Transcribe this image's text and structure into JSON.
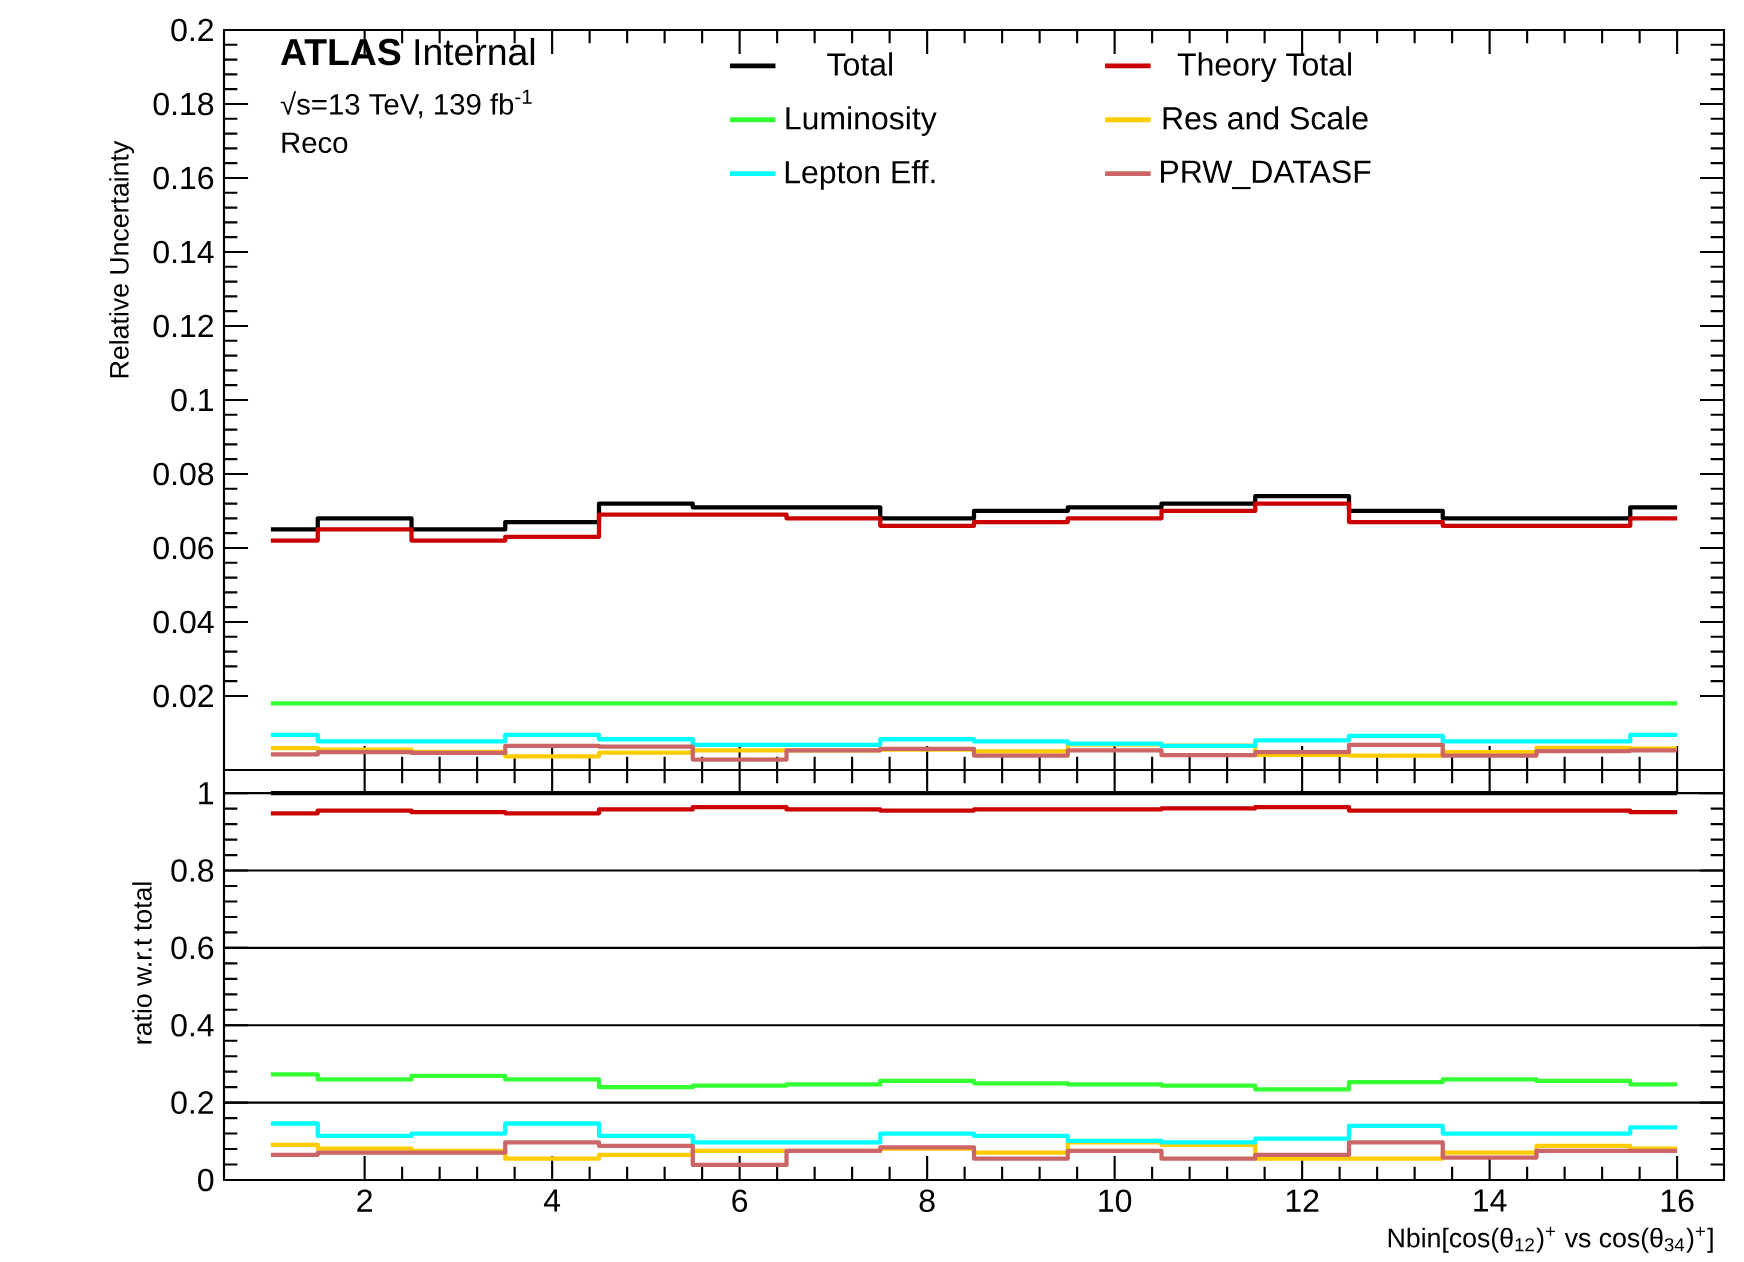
{
  "chart_data": [
    {
      "type": "step",
      "ylabel": "Relative Uncertainty",
      "xlim": [
        0.5,
        16.5
      ],
      "xticks": [
        2,
        4,
        6,
        8,
        10,
        12,
        14,
        16
      ],
      "ylim": [
        0,
        0.2
      ],
      "yticks": [
        0.02,
        0.04,
        0.06,
        0.08,
        0.1,
        0.12,
        0.14,
        0.16,
        0.18,
        0.2
      ],
      "tick_labels": "y",
      "legend": "top right",
      "annotations": [
        "**ATLAS** Internal",
        "√s=13 TeV, 139 fb$^{-1}$",
        "Reco"
      ],
      "x": [
        1,
        2,
        3,
        4,
        5,
        6,
        7,
        8,
        9,
        10,
        11,
        12,
        13,
        14,
        15,
        16
      ],
      "series": [
        {
          "name": "Total",
          "color": "#000000",
          "values": [
            0.065,
            0.068,
            0.065,
            0.067,
            0.072,
            0.071,
            0.071,
            0.068,
            0.07,
            0.071,
            0.072,
            0.074,
            0.07,
            0.068,
            0.068,
            0.071
          ]
        },
        {
          "name": "Theory Total",
          "color": "#cc0000",
          "values": [
            0.062,
            0.065,
            0.062,
            0.063,
            0.069,
            0.069,
            0.068,
            0.066,
            0.067,
            0.068,
            0.07,
            0.072,
            0.067,
            0.066,
            0.066,
            0.068
          ]
        },
        {
          "name": "Luminosity",
          "color": "#33ff33",
          "values": [
            0.018,
            0.018,
            0.018,
            0.018,
            0.018,
            0.018,
            0.018,
            0.018,
            0.018,
            0.018,
            0.018,
            0.018,
            0.018,
            0.018,
            0.018,
            0.018
          ]
        },
        {
          "name": "Res and Scale",
          "color": "#ffcc00",
          "values": [
            0.0059,
            0.0055,
            0.0049,
            0.0037,
            0.0047,
            0.0053,
            0.0053,
            0.0055,
            0.005,
            0.0069,
            0.0066,
            0.0041,
            0.0039,
            0.0048,
            0.006,
            0.0058
          ]
        },
        {
          "name": "Lepton Eff.",
          "color": "#00ffff",
          "values": [
            0.0095,
            0.0077,
            0.0077,
            0.0095,
            0.0083,
            0.0068,
            0.0068,
            0.0083,
            0.0077,
            0.0071,
            0.0065,
            0.008,
            0.0092,
            0.0077,
            0.0077,
            0.0095
          ]
        },
        {
          "name": "PRW_DATASF",
          "color": "#cc6666",
          "values": [
            0.0042,
            0.0048,
            0.0046,
            0.0065,
            0.0063,
            0.0028,
            0.0053,
            0.0057,
            0.0039,
            0.0053,
            0.004,
            0.0048,
            0.0068,
            0.0039,
            0.0051,
            0.0053
          ]
        }
      ]
    },
    {
      "type": "step",
      "ylabel": "ratio w.r.t total",
      "xlabel": "Nbin[cos(θ$_{12}$)$^{+}$ vs cos(θ$_{34}$)$^{+}$]",
      "xlim": [
        0.5,
        16.5
      ],
      "xticks": [
        2,
        4,
        6,
        8,
        10,
        12,
        14,
        16
      ],
      "ylim": [
        0,
        1.06
      ],
      "yticks": [
        0,
        0.2,
        0.4,
        0.6,
        0.8,
        1
      ],
      "grid": "y",
      "x": [
        1,
        2,
        3,
        4,
        5,
        6,
        7,
        8,
        9,
        10,
        11,
        12,
        13,
        14,
        15,
        16
      ],
      "series": [
        {
          "color": "#000000",
          "values": [
            1,
            1,
            1,
            1,
            1,
            1,
            1,
            1,
            1,
            1,
            1,
            1,
            1,
            1,
            1,
            1
          ]
        },
        {
          "color": "#cc0000",
          "values": [
            0.948,
            0.955,
            0.951,
            0.948,
            0.958,
            0.964,
            0.958,
            0.955,
            0.958,
            0.958,
            0.961,
            0.964,
            0.955,
            0.955,
            0.955,
            0.951
          ]
        },
        {
          "color": "#33ff33",
          "values": [
            0.273,
            0.26,
            0.269,
            0.26,
            0.24,
            0.244,
            0.247,
            0.256,
            0.25,
            0.247,
            0.244,
            0.234,
            0.253,
            0.26,
            0.256,
            0.247
          ]
        },
        {
          "color": "#ffcc00",
          "values": [
            0.091,
            0.081,
            0.075,
            0.055,
            0.065,
            0.075,
            0.075,
            0.081,
            0.071,
            0.097,
            0.091,
            0.055,
            0.055,
            0.071,
            0.088,
            0.081
          ]
        },
        {
          "color": "#00ffff",
          "values": [
            0.146,
            0.114,
            0.12,
            0.146,
            0.114,
            0.097,
            0.097,
            0.12,
            0.114,
            0.101,
            0.097,
            0.107,
            0.14,
            0.12,
            0.12,
            0.136
          ]
        },
        {
          "color": "#cc6666",
          "values": [
            0.065,
            0.071,
            0.071,
            0.097,
            0.088,
            0.039,
            0.075,
            0.084,
            0.055,
            0.075,
            0.055,
            0.065,
            0.097,
            0.058,
            0.075,
            0.075
          ]
        }
      ]
    }
  ]
}
